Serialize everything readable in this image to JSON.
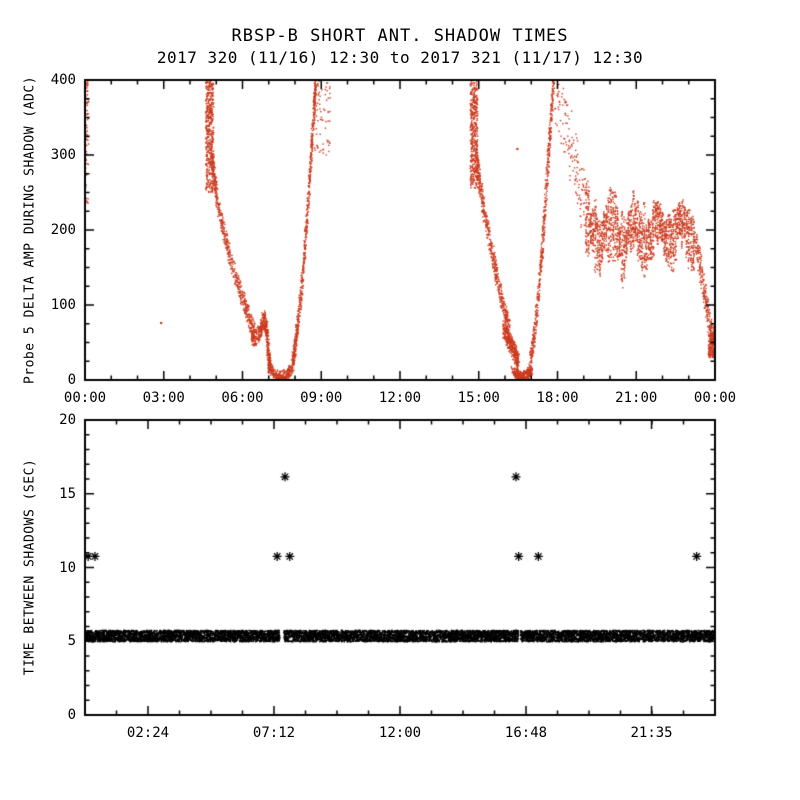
{
  "title": "RBSP-B SHORT ANT. SHADOW TIMES",
  "subtitle": "2017 320 (11/16) 12:30 to 2017 321 (11/17) 12:30",
  "chart_data": [
    {
      "type": "scatter",
      "panel": "top",
      "ylabel": "Probe 5 DELTA AMP DURING SHADOW (ADC)",
      "xlabel": "",
      "xlim": [
        0,
        24
      ],
      "ylim": [
        0,
        400
      ],
      "xticks": {
        "values": [
          0,
          3,
          6,
          9,
          12,
          15,
          18,
          21,
          24
        ],
        "labels": [
          "00:00",
          "03:00",
          "06:00",
          "09:00",
          "12:00",
          "15:00",
          "18:00",
          "21:00",
          "00:00"
        ]
      },
      "yticks": {
        "values": [
          0,
          100,
          200,
          300,
          400
        ],
        "labels": [
          "0",
          "100",
          "200",
          "300",
          "400"
        ]
      },
      "xminor": 1,
      "yminor": 25,
      "grid": false,
      "color": "#cc3a1e",
      "marker": "dot",
      "segments": [
        {
          "kind": "vstreak",
          "x": 0.07,
          "xspread": 0.14,
          "y0": 235,
          "y1": 398,
          "n": 70
        },
        {
          "kind": "point",
          "x": 2.9,
          "y": 76
        },
        {
          "kind": "vstreak",
          "x": 4.75,
          "xspread": 0.3,
          "y0": 250,
          "y1": 400,
          "n": 420
        },
        {
          "kind": "curve",
          "n": 560,
          "jx": 0.05,
          "jy": 12,
          "pts": [
            [
              4.85,
              300
            ],
            [
              4.95,
              262
            ],
            [
              5.1,
              228
            ],
            [
              5.3,
              196
            ],
            [
              5.55,
              162
            ],
            [
              5.85,
              128
            ],
            [
              6.1,
              100
            ],
            [
              6.3,
              78
            ],
            [
              6.45,
              62
            ]
          ]
        },
        {
          "kind": "curve",
          "n": 420,
          "jx": 0.05,
          "jy": 11,
          "pts": [
            [
              6.35,
              58
            ],
            [
              6.55,
              56
            ],
            [
              6.7,
              68
            ],
            [
              6.82,
              82
            ],
            [
              6.92,
              66
            ],
            [
              7.0,
              34
            ],
            [
              7.05,
              18
            ]
          ]
        },
        {
          "kind": "curve",
          "n": 260,
          "jx": 0.06,
          "jy": 7,
          "pts": [
            [
              7.0,
              18
            ],
            [
              7.2,
              9
            ],
            [
              7.45,
              5
            ],
            [
              7.7,
              8
            ],
            [
              7.85,
              14
            ]
          ]
        },
        {
          "kind": "curve",
          "n": 650,
          "jx": 0.04,
          "jy": 12,
          "pts": [
            [
              7.9,
              20
            ],
            [
              8.0,
              42
            ],
            [
              8.12,
              78
            ],
            [
              8.25,
              122
            ],
            [
              8.38,
              176
            ],
            [
              8.5,
              235
            ],
            [
              8.62,
              300
            ],
            [
              8.72,
              358
            ],
            [
              8.8,
              400
            ]
          ]
        },
        {
          "kind": "cloud",
          "x0": 8.75,
          "x1": 9.35,
          "y0": 300,
          "y1": 400,
          "n": 70
        },
        {
          "kind": "vstreak",
          "x": 14.82,
          "xspread": 0.28,
          "y0": 255,
          "y1": 400,
          "n": 380
        },
        {
          "kind": "curve",
          "n": 520,
          "jx": 0.05,
          "jy": 12,
          "pts": [
            [
              14.9,
              300
            ],
            [
              15.05,
              260
            ],
            [
              15.2,
              225
            ],
            [
              15.4,
              190
            ],
            [
              15.6,
              155
            ],
            [
              15.8,
              120
            ],
            [
              16.0,
              90
            ],
            [
              16.15,
              70
            ]
          ]
        },
        {
          "kind": "curve",
          "n": 380,
          "jx": 0.06,
          "jy": 11,
          "pts": [
            [
              15.95,
              68
            ],
            [
              16.1,
              56
            ],
            [
              16.25,
              46
            ],
            [
              16.4,
              34
            ],
            [
              16.5,
              22
            ]
          ]
        },
        {
          "kind": "curve",
          "n": 300,
          "jx": 0.07,
          "jy": 6,
          "pts": [
            [
              16.3,
              12
            ],
            [
              16.5,
              6
            ],
            [
              16.7,
              5
            ],
            [
              16.9,
              9
            ],
            [
              17.0,
              14
            ]
          ]
        },
        {
          "kind": "curve",
          "n": 520,
          "jx": 0.04,
          "jy": 12,
          "pts": [
            [
              16.95,
              22
            ],
            [
              17.1,
              55
            ],
            [
              17.25,
              105
            ],
            [
              17.4,
              165
            ],
            [
              17.52,
              225
            ],
            [
              17.64,
              290
            ],
            [
              17.76,
              350
            ],
            [
              17.85,
              400
            ]
          ]
        },
        {
          "kind": "point",
          "x": 16.47,
          "y": 308
        },
        {
          "kind": "curve",
          "n": 150,
          "jx": 0.12,
          "jy": 38,
          "pts": [
            [
              17.95,
              385
            ],
            [
              18.2,
              352
            ],
            [
              18.45,
              320
            ],
            [
              18.7,
              285
            ],
            [
              18.95,
              248
            ],
            [
              19.15,
              215
            ]
          ]
        },
        {
          "kind": "oscband",
          "x0": 19.1,
          "x1": 23.25,
          "step": 0.085,
          "center": 196,
          "wamp": 16,
          "wper": 0.9,
          "hmin": 18,
          "hmax": 52,
          "nper": 42
        },
        {
          "kind": "curve",
          "n": 280,
          "jx": 0.06,
          "jy": 14,
          "pts": [
            [
              23.25,
              190
            ],
            [
              23.4,
              160
            ],
            [
              23.55,
              128
            ],
            [
              23.7,
              95
            ],
            [
              23.85,
              65
            ],
            [
              23.95,
              50
            ]
          ]
        },
        {
          "kind": "cloud",
          "x0": 23.75,
          "x1": 24.0,
          "y0": 30,
          "y1": 62,
          "n": 160
        }
      ]
    },
    {
      "type": "scatter",
      "panel": "bottom",
      "ylabel": "TIME BETWEEN SHADOWS (SEC)",
      "xlabel": "",
      "xlim": [
        0,
        24
      ],
      "ylim": [
        0,
        20
      ],
      "xticks": {
        "values": [
          2.4,
          7.2,
          12.0,
          16.8,
          21.583
        ],
        "labels": [
          "02:24",
          "07:12",
          "12:00",
          "16:48",
          "21:35"
        ]
      },
      "yticks": {
        "values": [
          0,
          5,
          10,
          15,
          20
        ],
        "labels": [
          "0",
          "5",
          "10",
          "15",
          "20"
        ]
      },
      "xminor": 1.2,
      "yminor": 1,
      "grid": false,
      "color": "#000000",
      "marker": "asterisk",
      "band": {
        "y": 5.35,
        "half": 0.38,
        "x0": 0,
        "x1": 24,
        "n": 9000,
        "gaps": [
          [
            7.42,
            7.58
          ],
          [
            16.52,
            16.6
          ]
        ]
      },
      "outliers": [
        {
          "x": 0.12,
          "y": 10.75
        },
        {
          "x": 0.38,
          "y": 10.75
        },
        {
          "x": 7.32,
          "y": 10.75
        },
        {
          "x": 7.62,
          "y": 16.15
        },
        {
          "x": 7.8,
          "y": 10.75
        },
        {
          "x": 16.42,
          "y": 16.15
        },
        {
          "x": 16.52,
          "y": 10.75
        },
        {
          "x": 17.27,
          "y": 10.75
        },
        {
          "x": 23.3,
          "y": 10.75
        }
      ]
    }
  ]
}
